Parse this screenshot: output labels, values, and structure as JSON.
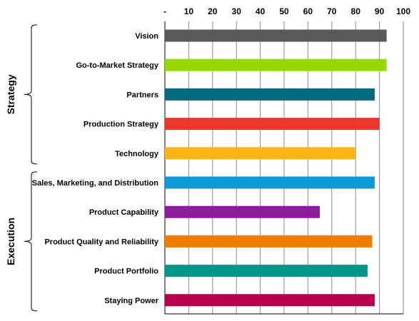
{
  "chart_data": {
    "type": "bar",
    "orientation": "horizontal",
    "title": "",
    "xlabel": "",
    "ylabel": "",
    "xlim": [
      0,
      100
    ],
    "x_ticks": [
      0,
      10,
      20,
      30,
      40,
      50,
      60,
      70,
      80,
      90,
      100
    ],
    "x_tick_labels": [
      "-",
      "10",
      "20",
      "30",
      "40",
      "50",
      "60",
      "70",
      "80",
      "90",
      "100"
    ],
    "x_axis_position": "top",
    "grid": "vertical",
    "categories": [
      "Vision",
      "Go-to-Market Strategy",
      "Partners",
      "Production Strategy",
      "Technology",
      "Sales, Marketing, and Distribution",
      "Product Capability",
      "Product Quality and Reliability",
      "Product Portfolio",
      "Staying Power"
    ],
    "values": [
      93,
      93,
      88,
      90,
      80,
      88,
      65,
      87,
      85,
      88
    ],
    "colors": [
      "#58595b",
      "#97d700",
      "#006a7e",
      "#e8392e",
      "#fdb515",
      "#0e9ad6",
      "#8e1a9e",
      "#f07d00",
      "#00968a",
      "#b5004d"
    ],
    "groups": [
      {
        "label": "Strategy",
        "categories": [
          "Vision",
          "Go-to-Market Strategy",
          "Partners",
          "Production Strategy",
          "Technology"
        ]
      },
      {
        "label": "Execution",
        "categories": [
          "Sales, Marketing, and Distribution",
          "Product Capability",
          "Product Quality and Reliability",
          "Product Portfolio",
          "Staying Power"
        ]
      }
    ]
  }
}
